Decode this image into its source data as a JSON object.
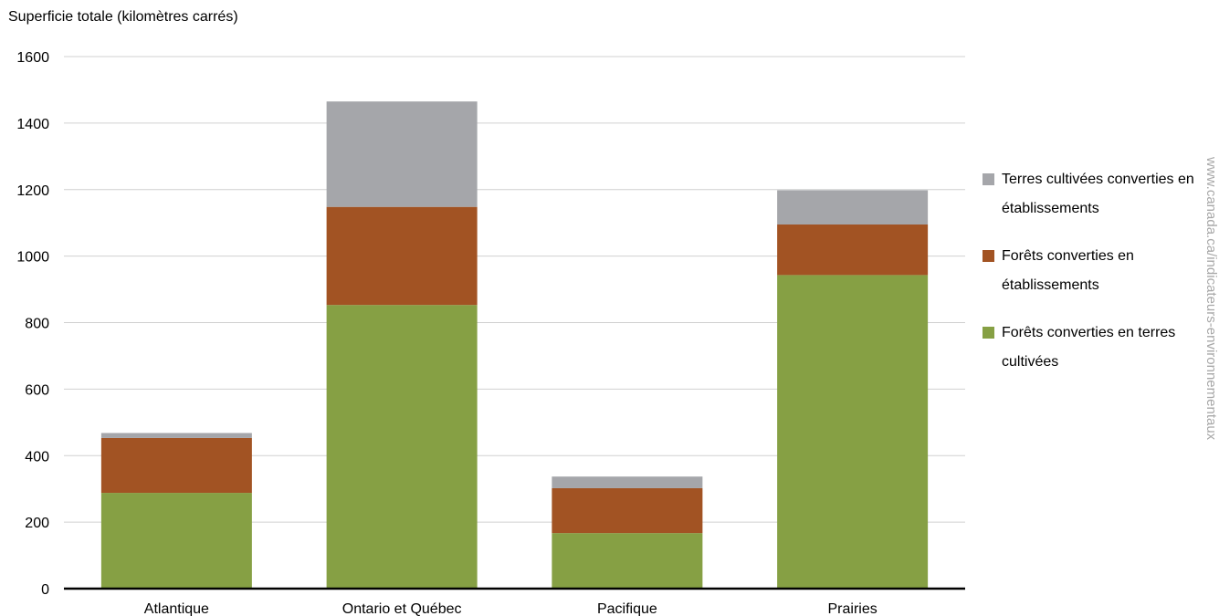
{
  "chart_data": {
    "type": "bar",
    "stacked": true,
    "ylabel": "Superficie totale (kilomètres carrés)",
    "xlabel": "",
    "ylim": [
      0,
      1600
    ],
    "yticks": [
      0,
      200,
      400,
      600,
      800,
      1000,
      1200,
      1400,
      1600
    ],
    "grid": true,
    "legend_position": "right",
    "categories": [
      "Atlantique",
      "Ontario et Québec",
      "Pacifique",
      "Prairies"
    ],
    "series": [
      {
        "name": "Forêts converties en terres cultivées",
        "color": "#86a044",
        "values": [
          288,
          853,
          167,
          943
        ]
      },
      {
        "name": "Forêts converties en établissements",
        "color": "#a25323",
        "values": [
          165,
          295,
          135,
          152
        ]
      },
      {
        "name": "Terres cultivées converties en établissements",
        "color": "#a5a6aa",
        "values": [
          15,
          317,
          35,
          103
        ]
      }
    ]
  },
  "watermark": "www.canada.ca/indicateurs-environnementaux"
}
